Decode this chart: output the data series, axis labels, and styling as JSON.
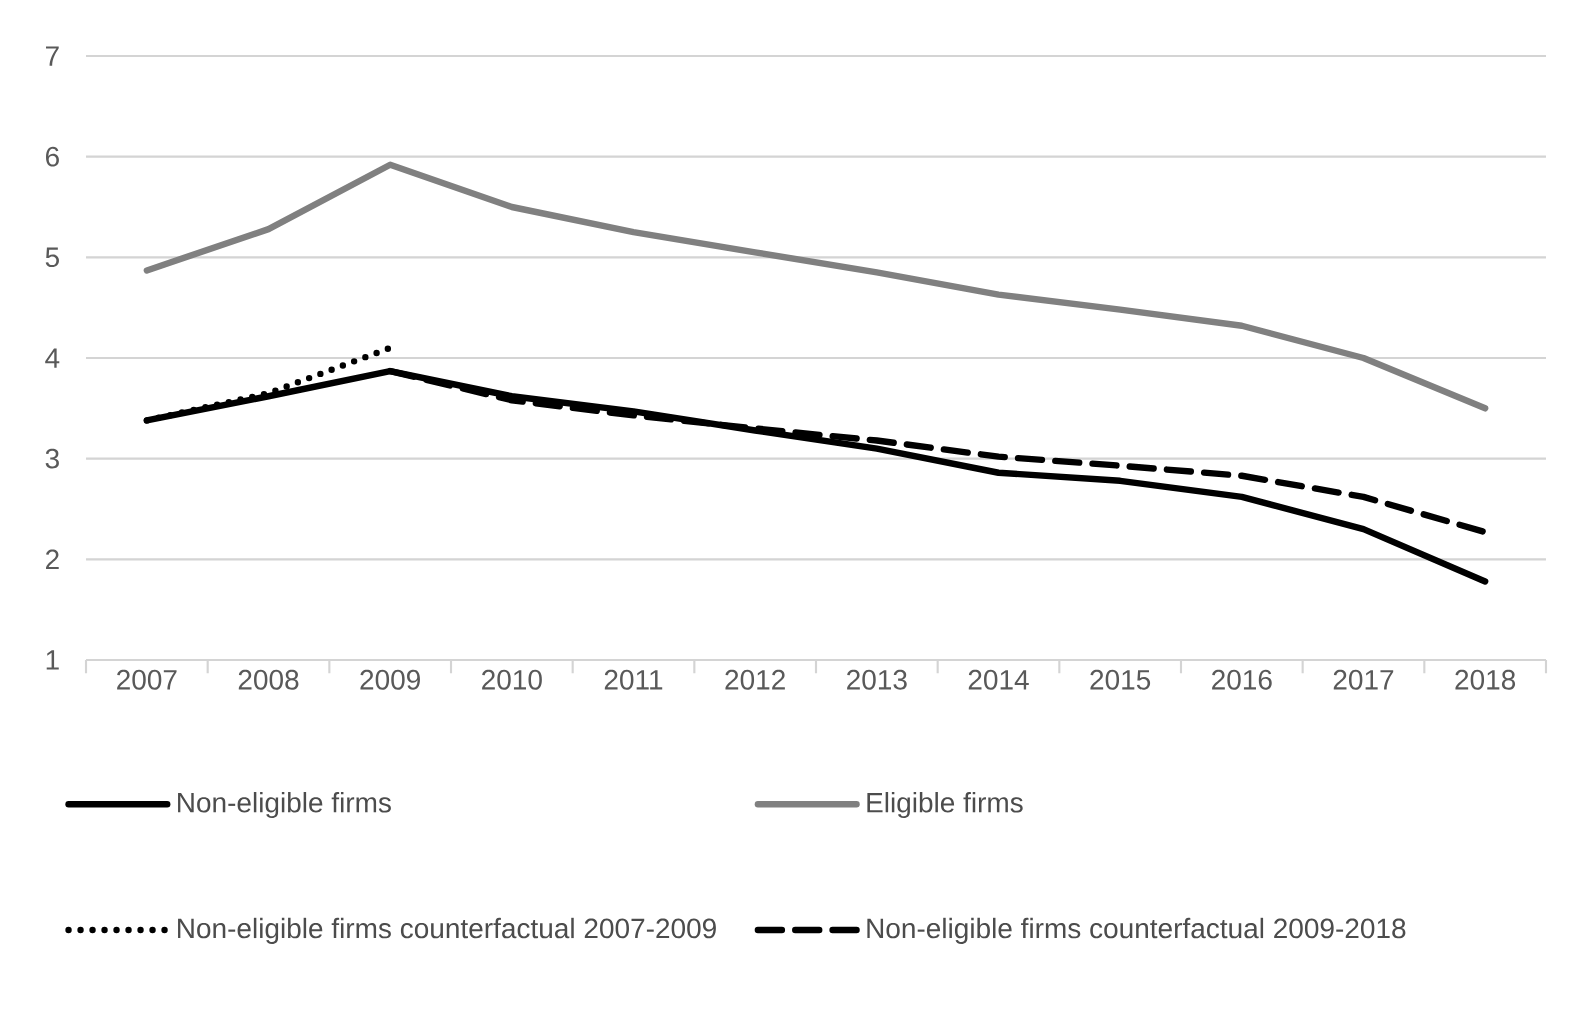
{
  "chart_data": {
    "type": "line",
    "categories": [
      "2007",
      "2008",
      "2009",
      "2010",
      "2011",
      "2012",
      "2013",
      "2014",
      "2015",
      "2016",
      "2017",
      "2018"
    ],
    "series": [
      {
        "name": "Non-eligible firms",
        "color": "#000000",
        "line_style": "solid",
        "values": [
          3.38,
          3.62,
          3.87,
          3.62,
          3.47,
          3.28,
          3.1,
          2.86,
          2.78,
          2.62,
          2.3,
          1.78
        ]
      },
      {
        "name": "Eligible firms",
        "color": "#808080",
        "line_style": "solid",
        "values": [
          4.87,
          5.28,
          5.92,
          5.5,
          5.25,
          5.05,
          4.85,
          4.63,
          4.48,
          4.32,
          4.0,
          3.5
        ]
      },
      {
        "name": "Non-eligible firms counterfactual 2007-2009",
        "color": "#000000",
        "line_style": "dotted",
        "values": [
          3.38,
          3.65,
          4.1,
          null,
          null,
          null,
          null,
          null,
          null,
          null,
          null,
          null
        ]
      },
      {
        "name": "Non-eligible firms counterfactual 2009-2018",
        "color": "#000000",
        "line_style": "dashed",
        "values": [
          null,
          null,
          3.87,
          3.58,
          3.43,
          3.3,
          3.18,
          3.02,
          2.93,
          2.83,
          2.62,
          2.27
        ]
      }
    ],
    "ylim": [
      1,
      7
    ],
    "yticks": [
      1,
      2,
      3,
      4,
      5,
      6,
      7
    ],
    "grid": "y",
    "legend": "bottom"
  }
}
